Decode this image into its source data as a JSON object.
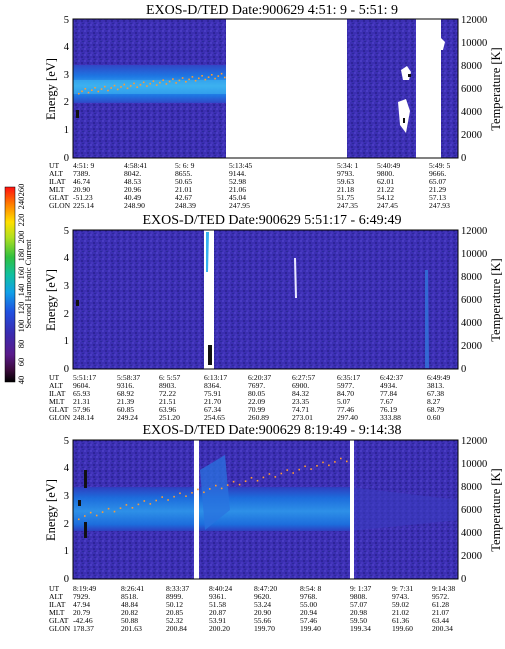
{
  "colorbar": {
    "label": "Second Harmonic Current",
    "ticks": [
      "40",
      "60",
      "80",
      "100",
      "120",
      "140",
      "160",
      "180",
      "200",
      "220",
      "240",
      "260"
    ]
  },
  "panels": [
    {
      "title": "EXOS-D/TED   Date:900629  4:51: 9 - 5:51: 9",
      "ylabel": "Energy [eV]",
      "y2label": "Temperature [K]",
      "ylim": [
        0,
        5
      ],
      "y2lim": [
        0,
        12000
      ],
      "yticks": [
        "0",
        "1",
        "2",
        "3",
        "4",
        "5"
      ],
      "y2ticks": [
        "0",
        "2000",
        "4000",
        "6000",
        "8000",
        "10000",
        "12000"
      ],
      "ephem_labels": [
        "UT",
        "ALT",
        "ILAT",
        "MLT",
        "GLAT",
        "GLON"
      ],
      "ephem": [
        {
          "ut": "4:51: 9",
          "alt": "7389.",
          "ilat": "46.74",
          "mlt": "20.90",
          "glat": "-51.23",
          "glon": "225.14"
        },
        {
          "ut": "4:58:41",
          "alt": "8042.",
          "ilat": "48.53",
          "mlt": "20.96",
          "glat": "40.49",
          "glon": "248.90"
        },
        {
          "ut": "5: 6: 9",
          "alt": "8655.",
          "ilat": "50.65",
          "mlt": "21.01",
          "glat": "42.67",
          "glon": "248.39"
        },
        {
          "ut": "5:13:45",
          "alt": "9144.",
          "ilat": "52.98",
          "mlt": "21.06",
          "glat": "45.04",
          "glon": "247.95"
        },
        {
          "ut": "5:34: 1",
          "alt": "9793.",
          "ilat": "59.63",
          "mlt": "21.18",
          "glat": "51.75",
          "glon": "247.35"
        },
        {
          "ut": "5:40:49",
          "alt": "9800.",
          "ilat": "62.01",
          "mlt": "21.22",
          "glat": "54.12",
          "glon": "247.45"
        },
        {
          "ut": "5:49: 5",
          "alt": "9666.",
          "ilat": "65.07",
          "mlt": "21.29",
          "glat": "57.13",
          "glon": "247.93"
        }
      ]
    },
    {
      "title": "EXOS-D/TED   Date:900629  5:51:17 - 6:49:49",
      "ylabel": "Energy [eV]",
      "y2label": "Temperature [K]",
      "ylim": [
        0,
        5
      ],
      "y2lim": [
        0,
        12000
      ],
      "yticks": [
        "0",
        "1",
        "2",
        "3",
        "4",
        "5"
      ],
      "y2ticks": [
        "0",
        "2000",
        "4000",
        "6000",
        "8000",
        "10000",
        "12000"
      ],
      "ephem_labels": [
        "UT",
        "ALT",
        "ILAT",
        "MLT",
        "GLAT",
        "GLON"
      ],
      "ephem": [
        {
          "ut": "5:51:17",
          "alt": "9604.",
          "ilat": "65.93",
          "mlt": "21.31",
          "glat": "57.96",
          "glon": "248.14"
        },
        {
          "ut": "5:58:37",
          "alt": "9316.",
          "ilat": "68.92",
          "mlt": "21.39",
          "glat": "60.85",
          "glon": "249.24"
        },
        {
          "ut": "6: 5:57",
          "alt": "8903.",
          "ilat": "72.22",
          "mlt": "21.51",
          "glat": "63.96",
          "glon": "251.20"
        },
        {
          "ut": "6:13:17",
          "alt": "8364.",
          "ilat": "75.91",
          "mlt": "21.70",
          "glat": "67.34",
          "glon": "254.65"
        },
        {
          "ut": "6:20:37",
          "alt": "7697.",
          "ilat": "80.05",
          "mlt": "22.09",
          "glat": "70.99",
          "glon": "260.89"
        },
        {
          "ut": "6:27:57",
          "alt": "6900.",
          "ilat": "84.32",
          "mlt": "23.35",
          "glat": "74.71",
          "glon": "273.01"
        },
        {
          "ut": "6:35:17",
          "alt": "5977.",
          "ilat": "84.70",
          "mlt": "5.07",
          "glat": "77.46",
          "glon": "297.40"
        },
        {
          "ut": "6:42:37",
          "alt": "4934.",
          "ilat": "77.84",
          "mlt": "7.67",
          "glat": "76.19",
          "glon": "333.88"
        },
        {
          "ut": "6:49:49",
          "alt": "3813.",
          "ilat": "67.38",
          "mlt": "8.27",
          "glat": "68.79",
          "glon": "0.60"
        }
      ]
    },
    {
      "title": "EXOS-D/TED   Date:900629  8:19:49 - 9:14:38",
      "ylabel": "Energy [eV]",
      "y2label": "Temperature [K]",
      "ylim": [
        0,
        5
      ],
      "y2lim": [
        0,
        12000
      ],
      "yticks": [
        "0",
        "1",
        "2",
        "3",
        "4",
        "5"
      ],
      "y2ticks": [
        "0",
        "2000",
        "4000",
        "6000",
        "8000",
        "10000",
        "12000"
      ],
      "ephem_labels": [
        "UT",
        "ALT",
        "ILAT",
        "MLT",
        "GLAT",
        "GLON"
      ],
      "ephem": [
        {
          "ut": "8:19:49",
          "alt": "7929.",
          "ilat": "47.94",
          "mlt": "20.79",
          "glat": "-42.46",
          "glon": "178.37"
        },
        {
          "ut": "8:26:41",
          "alt": "8518.",
          "ilat": "48.84",
          "mlt": "20.82",
          "glat": "50.88",
          "glon": "201.63"
        },
        {
          "ut": "8:33:37",
          "alt": "8999.",
          "ilat": "50.12",
          "mlt": "20.85",
          "glat": "52.32",
          "glon": "200.84"
        },
        {
          "ut": "8:40:24",
          "alt": "9361.",
          "ilat": "51.58",
          "mlt": "20.87",
          "glat": "53.91",
          "glon": "200.20"
        },
        {
          "ut": "8:47:20",
          "alt": "9620.",
          "ilat": "53.24",
          "mlt": "20.90",
          "glat": "55.66",
          "glon": "199.70"
        },
        {
          "ut": "8:54: 8",
          "alt": "9768.",
          "ilat": "55.00",
          "mlt": "20.94",
          "glat": "57.46",
          "glon": "199.40"
        },
        {
          "ut": "9: 1:37",
          "alt": "9808.",
          "ilat": "57.07",
          "mlt": "20.98",
          "glat": "59.50",
          "glon": "199.34"
        },
        {
          "ut": "9: 7:31",
          "alt": "9743.",
          "ilat": "59.02",
          "mlt": "21.02",
          "glat": "61.36",
          "glon": "199.60"
        },
        {
          "ut": "9:14:38",
          "alt": "9572.",
          "ilat": "61.28",
          "mlt": "21.07",
          "glat": "63.44",
          "glon": "200.34"
        }
      ]
    }
  ],
  "chart_data": [
    {
      "type": "heatmap",
      "title": "EXOS-D/TED   Date:900629  4:51: 9 - 5:51: 9",
      "ylabel": "Energy [eV]",
      "y2label": "Temperature [K]",
      "ylim": [
        0,
        5
      ],
      "y2lim": [
        0,
        12000
      ],
      "x_range_ut": [
        "4:51: 9",
        "5:51: 9"
      ],
      "temperature_trace": {
        "x_ut": [
          "4:51: 9",
          "5:13:45"
        ],
        "y_K": [
          5800,
          7200
        ]
      },
      "band_energy_eV": [
        2.1,
        3.3
      ]
    },
    {
      "type": "heatmap",
      "title": "EXOS-D/TED   Date:900629  5:51:17 - 6:49:49",
      "ylabel": "Energy [eV]",
      "y2label": "Temperature [K]",
      "ylim": [
        0,
        5
      ],
      "y2lim": [
        0,
        12000
      ],
      "x_range_ut": [
        "5:51:17",
        "6:49:49"
      ]
    },
    {
      "type": "heatmap",
      "title": "EXOS-D/TED   Date:900629  8:19:49 - 9:14:38",
      "ylabel": "Energy [eV]",
      "y2label": "Temperature [K]",
      "ylim": [
        0,
        5
      ],
      "y2lim": [
        0,
        12000
      ],
      "x_range_ut": [
        "8:19:49",
        "9:14:38"
      ],
      "temperature_trace": {
        "x_ut": [
          "8:19:49",
          "8:54: 8"
        ],
        "y_K": [
          5400,
          10400
        ]
      },
      "band_energy_eV": [
        1.9,
        3.3
      ]
    }
  ],
  "colors": {
    "background_field": "#3b2fb2",
    "band": "#1f6ee0",
    "band_core": "#35a6ef",
    "trace": "#ff9b33",
    "gap": "#ffffff"
  }
}
